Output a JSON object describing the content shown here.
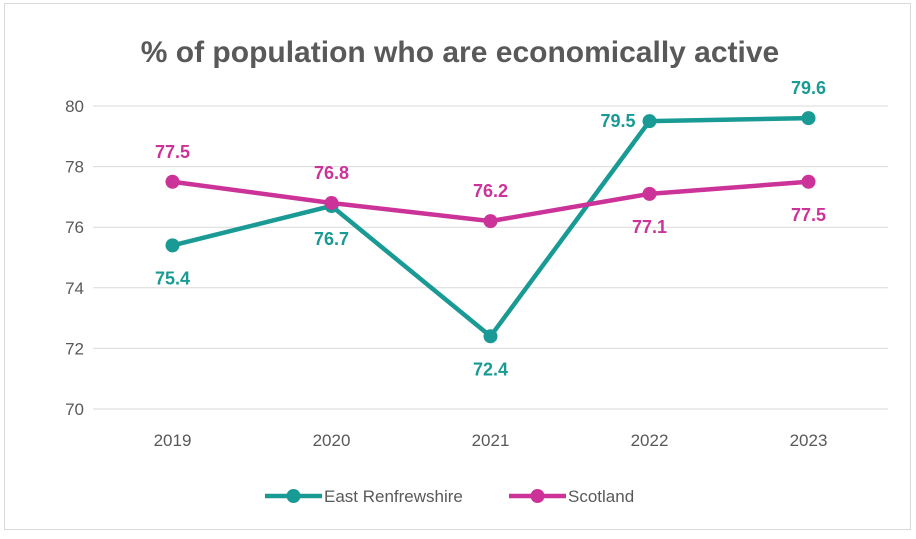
{
  "chart_data": {
    "type": "line",
    "title": "% of population who are economically active",
    "xlabel": "",
    "ylabel": "",
    "categories": [
      "2019",
      "2020",
      "2021",
      "2022",
      "2023"
    ],
    "ylim": [
      70,
      80
    ],
    "yticks": [
      70,
      72,
      74,
      76,
      78,
      80
    ],
    "grid": true,
    "legend_position": "bottom",
    "series": [
      {
        "name": "East Renfrewshire",
        "color": "#1a9a94",
        "values": [
          75.4,
          76.7,
          72.4,
          79.5,
          79.6
        ],
        "labels": [
          "75.4",
          "76.7",
          "72.4",
          "79.5",
          "79.6"
        ]
      },
      {
        "name": "Scotland",
        "color": "#cc3399",
        "values": [
          77.5,
          76.8,
          76.2,
          77.1,
          77.5
        ],
        "labels": [
          "77.5",
          "76.8",
          "76.2",
          "77.1",
          "77.5"
        ]
      }
    ]
  }
}
